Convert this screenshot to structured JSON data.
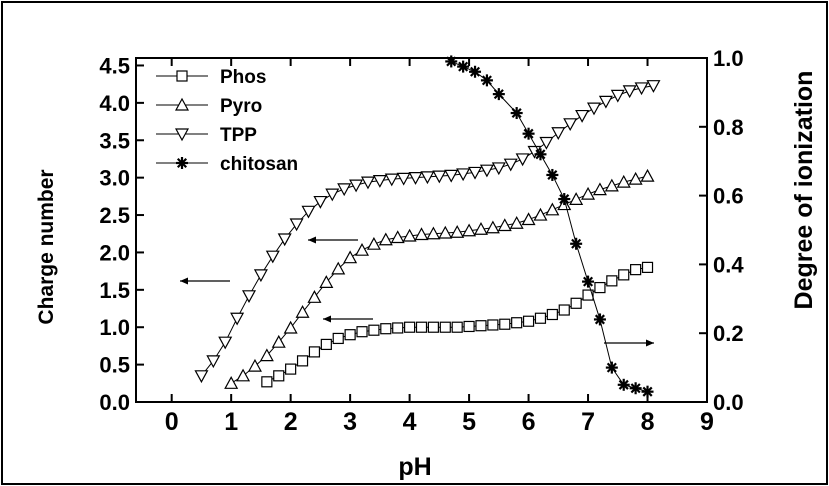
{
  "chart_data": {
    "type": "scatter",
    "xlabel": "pH",
    "ylabel_left": "Charge number",
    "ylabel_right": "Degree of ionization",
    "xlim": [
      -0.6,
      9
    ],
    "ylim_left": [
      0,
      4.6
    ],
    "ylim_right": [
      0,
      1.0
    ],
    "x_ticks": [
      "0",
      "1",
      "2",
      "3",
      "4",
      "5",
      "6",
      "7",
      "8",
      "9"
    ],
    "y_left_ticks": [
      "0.0",
      "0.5",
      "1.0",
      "1.5",
      "2.0",
      "2.5",
      "3.0",
      "3.5",
      "4.0",
      "4.5"
    ],
    "y_right_ticks": [
      "0.0",
      "0.2",
      "0.4",
      "0.6",
      "0.8",
      "1.0"
    ],
    "grid": false,
    "legend_position": "top-left",
    "colors": {
      "line": "#000000",
      "background": "#ffffff",
      "border": "#000000"
    },
    "series": [
      {
        "name": "Phos",
        "marker": "square",
        "axis": "left",
        "x": [
          1.6,
          1.8,
          2.0,
          2.2,
          2.4,
          2.6,
          2.8,
          3.0,
          3.2,
          3.4,
          3.6,
          3.8,
          4.0,
          4.2,
          4.4,
          4.6,
          4.8,
          5.0,
          5.2,
          5.4,
          5.6,
          5.8,
          6.0,
          6.2,
          6.4,
          6.6,
          6.8,
          7.0,
          7.2,
          7.4,
          7.6,
          7.8,
          8.0
        ],
        "y": [
          0.27,
          0.35,
          0.44,
          0.55,
          0.67,
          0.77,
          0.85,
          0.9,
          0.94,
          0.96,
          0.98,
          0.99,
          1.0,
          1.0,
          1.0,
          1.0,
          1.0,
          1.01,
          1.02,
          1.03,
          1.04,
          1.06,
          1.08,
          1.12,
          1.17,
          1.23,
          1.32,
          1.43,
          1.53,
          1.62,
          1.7,
          1.77,
          1.8
        ]
      },
      {
        "name": "Pyro",
        "marker": "triangle-up",
        "axis": "left",
        "x": [
          1.0,
          1.2,
          1.4,
          1.6,
          1.8,
          2.0,
          2.2,
          2.4,
          2.6,
          2.8,
          3.0,
          3.2,
          3.4,
          3.6,
          3.8,
          4.0,
          4.2,
          4.4,
          4.6,
          4.8,
          5.0,
          5.2,
          5.4,
          5.6,
          5.8,
          6.0,
          6.2,
          6.4,
          6.6,
          6.8,
          7.0,
          7.2,
          7.4,
          7.6,
          7.8,
          8.0
        ],
        "y": [
          0.25,
          0.35,
          0.48,
          0.62,
          0.8,
          0.99,
          1.2,
          1.4,
          1.6,
          1.78,
          1.93,
          2.03,
          2.11,
          2.17,
          2.2,
          2.22,
          2.24,
          2.25,
          2.26,
          2.27,
          2.29,
          2.31,
          2.33,
          2.36,
          2.39,
          2.44,
          2.5,
          2.57,
          2.64,
          2.71,
          2.78,
          2.84,
          2.89,
          2.94,
          2.98,
          3.02
        ]
      },
      {
        "name": "TPP",
        "marker": "triangle-down",
        "axis": "left",
        "x": [
          0.5,
          0.7,
          0.9,
          1.1,
          1.3,
          1.5,
          1.7,
          1.9,
          2.1,
          2.3,
          2.5,
          2.7,
          2.9,
          3.1,
          3.3,
          3.5,
          3.7,
          3.9,
          4.1,
          4.3,
          4.5,
          4.7,
          4.9,
          5.1,
          5.3,
          5.5,
          5.7,
          5.9,
          6.1,
          6.3,
          6.5,
          6.7,
          6.9,
          7.1,
          7.3,
          7.5,
          7.7,
          7.9,
          8.1
        ],
        "y": [
          0.35,
          0.55,
          0.8,
          1.12,
          1.42,
          1.7,
          1.95,
          2.18,
          2.38,
          2.55,
          2.68,
          2.78,
          2.85,
          2.9,
          2.94,
          2.96,
          2.98,
          2.99,
          3.0,
          3.01,
          3.02,
          3.03,
          3.05,
          3.07,
          3.1,
          3.13,
          3.18,
          3.25,
          3.35,
          3.47,
          3.6,
          3.72,
          3.83,
          3.93,
          4.02,
          4.1,
          4.16,
          4.2,
          4.23
        ]
      },
      {
        "name": "chitosan",
        "marker": "asterisk",
        "axis": "right",
        "x": [
          4.7,
          4.9,
          5.1,
          5.3,
          5.5,
          5.8,
          6.0,
          6.2,
          6.4,
          6.6,
          6.8,
          7.0,
          7.2,
          7.4,
          7.6,
          7.8,
          8.0
        ],
        "y": [
          0.99,
          0.975,
          0.96,
          0.935,
          0.895,
          0.84,
          0.78,
          0.72,
          0.66,
          0.59,
          0.46,
          0.35,
          0.24,
          0.1,
          0.05,
          0.04,
          0.03
        ]
      }
    ],
    "annotations": [
      {
        "type": "arrow",
        "direction": "left",
        "target": "left-axis"
      },
      {
        "type": "arrow",
        "direction": "left",
        "target": "left-axis"
      },
      {
        "type": "arrow",
        "direction": "left",
        "target": "left-axis"
      },
      {
        "type": "arrow",
        "direction": "right",
        "target": "right-axis"
      }
    ]
  }
}
